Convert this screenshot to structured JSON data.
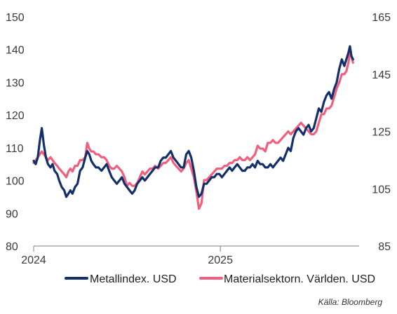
{
  "chart_data": {
    "type": "line",
    "title": "",
    "xlabel": "",
    "ylabel": "",
    "x_ticks": [
      "2024",
      "2025"
    ],
    "y_left": {
      "ticks": [
        80,
        90,
        100,
        110,
        120,
        130,
        140,
        150
      ],
      "range": [
        80,
        150
      ]
    },
    "y_right": {
      "ticks": [
        85,
        105,
        125,
        145,
        165
      ],
      "range": [
        85,
        165
      ]
    },
    "x_range": [
      "2024-01-01",
      "2025-09-30"
    ],
    "grid": false,
    "legend_position": "bottom",
    "series": [
      {
        "name": "Metallindex. USD",
        "axis": "left",
        "color": "#13306b",
        "points": [
          [
            "2024-01-01",
            106
          ],
          [
            "2024-01-05",
            105
          ],
          [
            "2024-01-09",
            107
          ],
          [
            "2024-01-13",
            112
          ],
          [
            "2024-01-17",
            116
          ],
          [
            "2024-01-21",
            111
          ],
          [
            "2024-01-25",
            107
          ],
          [
            "2024-01-29",
            105
          ],
          [
            "2024-02-03",
            104
          ],
          [
            "2024-02-07",
            105
          ],
          [
            "2024-02-11",
            103
          ],
          [
            "2024-02-16",
            102
          ],
          [
            "2024-02-20",
            100
          ],
          [
            "2024-02-25",
            98
          ],
          [
            "2024-03-01",
            97
          ],
          [
            "2024-03-05",
            95
          ],
          [
            "2024-03-09",
            96
          ],
          [
            "2024-03-13",
            97
          ],
          [
            "2024-03-17",
            96
          ],
          [
            "2024-03-22",
            98
          ],
          [
            "2024-03-27",
            99
          ],
          [
            "2024-04-01",
            103
          ],
          [
            "2024-04-06",
            104
          ],
          [
            "2024-04-11",
            107
          ],
          [
            "2024-04-15",
            109
          ],
          [
            "2024-04-19",
            108
          ],
          [
            "2024-04-23",
            106
          ],
          [
            "2024-04-27",
            105
          ],
          [
            "2024-05-02",
            104
          ],
          [
            "2024-05-07",
            104
          ],
          [
            "2024-05-13",
            103
          ],
          [
            "2024-05-18",
            104
          ],
          [
            "2024-05-23",
            105
          ],
          [
            "2024-05-28",
            103
          ],
          [
            "2024-06-02",
            101
          ],
          [
            "2024-06-07",
            100
          ],
          [
            "2024-06-12",
            99
          ],
          [
            "2024-06-17",
            100
          ],
          [
            "2024-06-22",
            101
          ],
          [
            "2024-06-27",
            99
          ],
          [
            "2024-07-02",
            98
          ],
          [
            "2024-07-07",
            97
          ],
          [
            "2024-07-12",
            96
          ],
          [
            "2024-07-17",
            97
          ],
          [
            "2024-07-22",
            99
          ],
          [
            "2024-07-27",
            100
          ],
          [
            "2024-08-01",
            101
          ],
          [
            "2024-08-06",
            100
          ],
          [
            "2024-08-11",
            101
          ],
          [
            "2024-08-16",
            102
          ],
          [
            "2024-08-21",
            103
          ],
          [
            "2024-08-26",
            104
          ],
          [
            "2024-09-01",
            104
          ],
          [
            "2024-09-06",
            106
          ],
          [
            "2024-09-11",
            107
          ],
          [
            "2024-09-16",
            107
          ],
          [
            "2024-09-21",
            108
          ],
          [
            "2024-09-26",
            109
          ],
          [
            "2024-10-01",
            107
          ],
          [
            "2024-10-06",
            106
          ],
          [
            "2024-10-11",
            105
          ],
          [
            "2024-10-16",
            104
          ],
          [
            "2024-10-21",
            104
          ],
          [
            "2024-10-26",
            108
          ],
          [
            "2024-10-31",
            109
          ],
          [
            "2024-11-05",
            107
          ],
          [
            "2024-11-10",
            103
          ],
          [
            "2024-11-15",
            98
          ],
          [
            "2024-11-20",
            95
          ],
          [
            "2024-11-25",
            96
          ],
          [
            "2024-11-30",
            99
          ],
          [
            "2024-12-05",
            99
          ],
          [
            "2024-12-10",
            100
          ],
          [
            "2024-12-15",
            101
          ],
          [
            "2024-12-20",
            101
          ],
          [
            "2024-12-25",
            102
          ],
          [
            "2024-12-30",
            102
          ],
          [
            "2025-01-04",
            101
          ],
          [
            "2025-01-09",
            102
          ],
          [
            "2025-01-14",
            103
          ],
          [
            "2025-01-19",
            104
          ],
          [
            "2025-01-24",
            103
          ],
          [
            "2025-01-29",
            104
          ],
          [
            "2025-02-03",
            105
          ],
          [
            "2025-02-08",
            104
          ],
          [
            "2025-02-13",
            103
          ],
          [
            "2025-02-18",
            103
          ],
          [
            "2025-02-23",
            104
          ],
          [
            "2025-02-28",
            104
          ],
          [
            "2025-03-05",
            105
          ],
          [
            "2025-03-10",
            104
          ],
          [
            "2025-03-15",
            106
          ],
          [
            "2025-03-20",
            105
          ],
          [
            "2025-03-25",
            105
          ],
          [
            "2025-03-30",
            104
          ],
          [
            "2025-04-04",
            104
          ],
          [
            "2025-04-09",
            105
          ],
          [
            "2025-04-14",
            104
          ],
          [
            "2025-04-19",
            105
          ],
          [
            "2025-04-24",
            106
          ],
          [
            "2025-04-29",
            107
          ],
          [
            "2025-05-04",
            106
          ],
          [
            "2025-05-09",
            108
          ],
          [
            "2025-05-14",
            110
          ],
          [
            "2025-05-19",
            109
          ],
          [
            "2025-05-24",
            113
          ],
          [
            "2025-05-29",
            115
          ],
          [
            "2025-06-03",
            116
          ],
          [
            "2025-06-08",
            115
          ],
          [
            "2025-06-13",
            114
          ],
          [
            "2025-06-18",
            116
          ],
          [
            "2025-06-23",
            117
          ],
          [
            "2025-06-28",
            115
          ],
          [
            "2025-07-03",
            116
          ],
          [
            "2025-07-08",
            119
          ],
          [
            "2025-07-13",
            122
          ],
          [
            "2025-07-18",
            121
          ],
          [
            "2025-07-23",
            124
          ],
          [
            "2025-07-28",
            126
          ],
          [
            "2025-08-02",
            127
          ],
          [
            "2025-08-07",
            125
          ],
          [
            "2025-08-12",
            128
          ],
          [
            "2025-08-17",
            130
          ],
          [
            "2025-08-22",
            134
          ],
          [
            "2025-08-27",
            137
          ],
          [
            "2025-09-01",
            135
          ],
          [
            "2025-09-05",
            137
          ],
          [
            "2025-09-09",
            139
          ],
          [
            "2025-09-12",
            141
          ],
          [
            "2025-09-15",
            138
          ],
          [
            "2025-09-18",
            137
          ]
        ]
      },
      {
        "name": "Materialsektorn. Världen. USD",
        "axis": "right",
        "color": "#f0607e",
        "points": [
          [
            "2024-01-01",
            114
          ],
          [
            "2024-01-05",
            115
          ],
          [
            "2024-01-09",
            116
          ],
          [
            "2024-01-13",
            117
          ],
          [
            "2024-01-17",
            118
          ],
          [
            "2024-01-21",
            117
          ],
          [
            "2024-01-25",
            116
          ],
          [
            "2024-01-29",
            115
          ],
          [
            "2024-02-03",
            116
          ],
          [
            "2024-02-07",
            115
          ],
          [
            "2024-02-11",
            114
          ],
          [
            "2024-02-16",
            113
          ],
          [
            "2024-02-20",
            112
          ],
          [
            "2024-02-25",
            111
          ],
          [
            "2024-03-01",
            110
          ],
          [
            "2024-03-05",
            109
          ],
          [
            "2024-03-09",
            111
          ],
          [
            "2024-03-13",
            112
          ],
          [
            "2024-03-17",
            111
          ],
          [
            "2024-03-22",
            113
          ],
          [
            "2024-03-27",
            113
          ],
          [
            "2024-04-01",
            115
          ],
          [
            "2024-04-06",
            115
          ],
          [
            "2024-04-11",
            116
          ],
          [
            "2024-04-15",
            121
          ],
          [
            "2024-04-19",
            119
          ],
          [
            "2024-04-23",
            118
          ],
          [
            "2024-04-27",
            118
          ],
          [
            "2024-05-02",
            117
          ],
          [
            "2024-05-07",
            117
          ],
          [
            "2024-05-13",
            116
          ],
          [
            "2024-05-18",
            116
          ],
          [
            "2024-05-23",
            115
          ],
          [
            "2024-05-28",
            113
          ],
          [
            "2024-06-02",
            112
          ],
          [
            "2024-06-07",
            112
          ],
          [
            "2024-06-12",
            113
          ],
          [
            "2024-06-17",
            112
          ],
          [
            "2024-06-22",
            111
          ],
          [
            "2024-06-27",
            109
          ],
          [
            "2024-07-02",
            106
          ],
          [
            "2024-07-07",
            107
          ],
          [
            "2024-07-12",
            106
          ],
          [
            "2024-07-17",
            106
          ],
          [
            "2024-07-22",
            107
          ],
          [
            "2024-07-27",
            109
          ],
          [
            "2024-08-01",
            111
          ],
          [
            "2024-08-06",
            110
          ],
          [
            "2024-08-11",
            111
          ],
          [
            "2024-08-16",
            112
          ],
          [
            "2024-08-21",
            112
          ],
          [
            "2024-08-26",
            113
          ],
          [
            "2024-09-01",
            112
          ],
          [
            "2024-09-06",
            113
          ],
          [
            "2024-09-11",
            114
          ],
          [
            "2024-09-16",
            114
          ],
          [
            "2024-09-21",
            115
          ],
          [
            "2024-09-26",
            116
          ],
          [
            "2024-10-01",
            114
          ],
          [
            "2024-10-06",
            113
          ],
          [
            "2024-10-11",
            112
          ],
          [
            "2024-10-16",
            111
          ],
          [
            "2024-10-21",
            112
          ],
          [
            "2024-10-26",
            114
          ],
          [
            "2024-10-31",
            115
          ],
          [
            "2024-11-05",
            112
          ],
          [
            "2024-11-10",
            109
          ],
          [
            "2024-11-15",
            104
          ],
          [
            "2024-11-20",
            98
          ],
          [
            "2024-11-25",
            100
          ],
          [
            "2024-11-30",
            108
          ],
          [
            "2024-12-05",
            108
          ],
          [
            "2024-12-10",
            109
          ],
          [
            "2024-12-15",
            110
          ],
          [
            "2024-12-20",
            111
          ],
          [
            "2024-12-25",
            112
          ],
          [
            "2024-12-30",
            112
          ],
          [
            "2025-01-04",
            112
          ],
          [
            "2025-01-09",
            113
          ],
          [
            "2025-01-14",
            113
          ],
          [
            "2025-01-19",
            114
          ],
          [
            "2025-01-24",
            114
          ],
          [
            "2025-01-29",
            115
          ],
          [
            "2025-02-03",
            115
          ],
          [
            "2025-02-08",
            116
          ],
          [
            "2025-02-13",
            115
          ],
          [
            "2025-02-18",
            115
          ],
          [
            "2025-02-23",
            116
          ],
          [
            "2025-02-28",
            115
          ],
          [
            "2025-03-05",
            116
          ],
          [
            "2025-03-10",
            117
          ],
          [
            "2025-03-15",
            120
          ],
          [
            "2025-03-20",
            119
          ],
          [
            "2025-03-25",
            119
          ],
          [
            "2025-03-30",
            118
          ],
          [
            "2025-04-04",
            121
          ],
          [
            "2025-04-09",
            121
          ],
          [
            "2025-04-14",
            122
          ],
          [
            "2025-04-19",
            121
          ],
          [
            "2025-04-24",
            121
          ],
          [
            "2025-04-29",
            122
          ],
          [
            "2025-05-04",
            123
          ],
          [
            "2025-05-09",
            124
          ],
          [
            "2025-05-14",
            125
          ],
          [
            "2025-05-19",
            124
          ],
          [
            "2025-05-24",
            125
          ],
          [
            "2025-05-29",
            126
          ],
          [
            "2025-06-03",
            127
          ],
          [
            "2025-06-08",
            128
          ],
          [
            "2025-06-13",
            127
          ],
          [
            "2025-06-18",
            126
          ],
          [
            "2025-06-23",
            125
          ],
          [
            "2025-06-28",
            124
          ],
          [
            "2025-07-03",
            124
          ],
          [
            "2025-07-08",
            125
          ],
          [
            "2025-07-13",
            128
          ],
          [
            "2025-07-18",
            131
          ],
          [
            "2025-07-23",
            131
          ],
          [
            "2025-07-28",
            133
          ],
          [
            "2025-08-02",
            133
          ],
          [
            "2025-08-07",
            134
          ],
          [
            "2025-08-12",
            137
          ],
          [
            "2025-08-17",
            140
          ],
          [
            "2025-08-22",
            142
          ],
          [
            "2025-08-27",
            145
          ],
          [
            "2025-09-01",
            145
          ],
          [
            "2025-09-05",
            146
          ],
          [
            "2025-09-09",
            149
          ],
          [
            "2025-09-12",
            153
          ],
          [
            "2025-09-15",
            151
          ],
          [
            "2025-09-18",
            149
          ]
        ]
      }
    ]
  },
  "legend": {
    "items": [
      {
        "label": "Metallindex. USD",
        "color": "#13306b"
      },
      {
        "label": "Materialsektorn. Världen. USD",
        "color": "#f0607e"
      }
    ]
  },
  "source": "Källa: Bloomberg"
}
